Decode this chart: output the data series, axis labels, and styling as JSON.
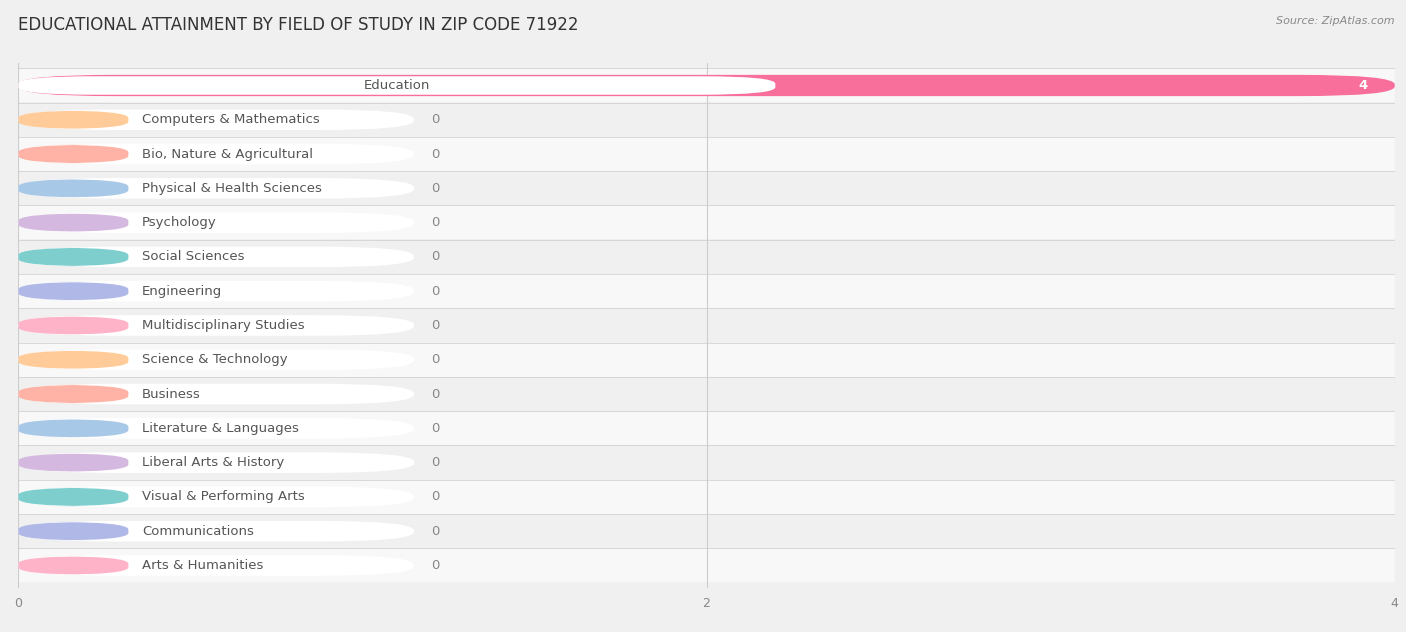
{
  "title": "EDUCATIONAL ATTAINMENT BY FIELD OF STUDY IN ZIP CODE 71922",
  "source": "Source: ZipAtlas.com",
  "categories": [
    "Education",
    "Computers & Mathematics",
    "Bio, Nature & Agricultural",
    "Physical & Health Sciences",
    "Psychology",
    "Social Sciences",
    "Engineering",
    "Multidisciplinary Studies",
    "Science & Technology",
    "Business",
    "Literature & Languages",
    "Liberal Arts & History",
    "Visual & Performing Arts",
    "Communications",
    "Arts & Humanities"
  ],
  "values": [
    4,
    0,
    0,
    0,
    0,
    0,
    0,
    0,
    0,
    0,
    0,
    0,
    0,
    0,
    0
  ],
  "bar_colors": [
    "#F76F9A",
    "#FFCC99",
    "#FFB3A7",
    "#A8C8E8",
    "#D4B8E0",
    "#7ECECE",
    "#B0B8E8",
    "#FFB3C8",
    "#FFCC99",
    "#FFB3A7",
    "#A8C8E8",
    "#D4B8E0",
    "#7ECECE",
    "#B0B8E8",
    "#FFB3C8"
  ],
  "background_color": "#f0f0f0",
  "row_bg_color": "#ffffff",
  "xlim": [
    0,
    4
  ],
  "xticks": [
    0,
    2,
    4
  ],
  "title_fontsize": 12,
  "label_fontsize": 9.5,
  "tick_fontsize": 9,
  "value_label_color": "#888888",
  "value_label_color_on_bar": "#ffffff",
  "text_color": "#555555"
}
